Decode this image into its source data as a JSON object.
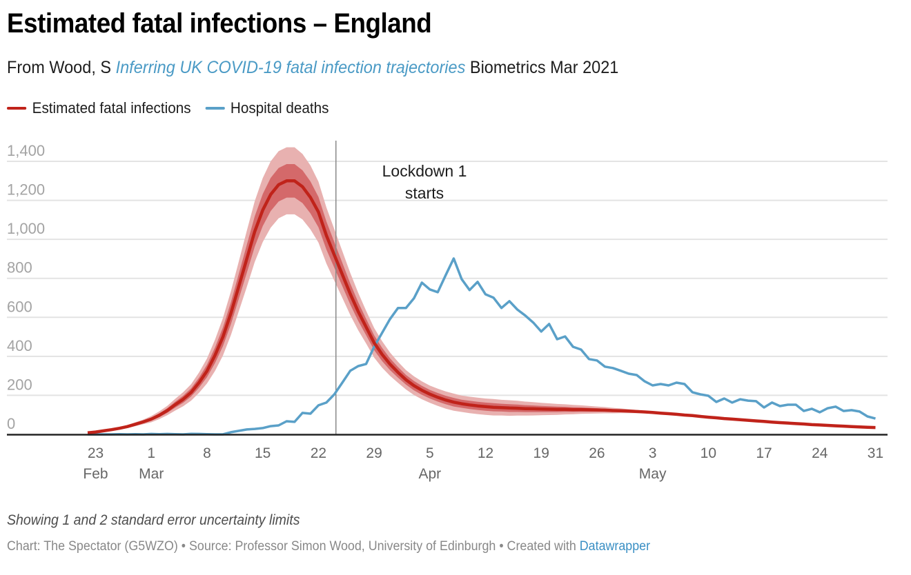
{
  "header": {
    "title": "Estimated fatal infections – England",
    "subtitle_prefix": "From Wood, S ",
    "subtitle_link": "Inferring UK COVID-19 fatal infection trajectories",
    "subtitle_suffix": " Biometrics Mar 2021"
  },
  "legend": [
    {
      "label": "Estimated fatal infections",
      "color": "#c0231a"
    },
    {
      "label": "Hospital deaths",
      "color": "#5aa0c8"
    }
  ],
  "note": "Showing 1 and 2 standard error uncertainty limits",
  "footer": {
    "text": "Chart: The Spectator (G5WZO) • Source: Professor Simon Wood, University of Edinburgh • Created with ",
    "link": "Datawrapper"
  },
  "colors": {
    "fatal_line": "#c0231a",
    "fatal_band_1se": "#d4696a",
    "fatal_band_2se": "#e8b1b0",
    "hospital_line": "#5aa0c8",
    "grid": "#e3e3e3",
    "axis": "#222222",
    "annotation_line": "#888888"
  },
  "chart_data": {
    "type": "line",
    "title": "Estimated fatal infections – England",
    "xlabel": "",
    "ylabel": "",
    "x_start_date": "2020-02-22",
    "x_unit": "day",
    "xlim_days": [
      0,
      100
    ],
    "ylim": [
      0,
      1400
    ],
    "grid": true,
    "legend_position": "top-left",
    "y_ticks": [
      {
        "value": 0,
        "label": "0"
      },
      {
        "value": 200,
        "label": "200"
      },
      {
        "value": 400,
        "label": "400"
      },
      {
        "value": 600,
        "label": "600"
      },
      {
        "value": 800,
        "label": "800"
      },
      {
        "value": 1000,
        "label": "1,000"
      },
      {
        "value": 1200,
        "label": "1,200"
      },
      {
        "value": 1400,
        "label": "1,400"
      }
    ],
    "x_ticks": [
      {
        "day": 1,
        "label": "23",
        "month": "Feb"
      },
      {
        "day": 8,
        "label": "1",
        "month": "Mar"
      },
      {
        "day": 15,
        "label": "8",
        "month": ""
      },
      {
        "day": 22,
        "label": "15",
        "month": ""
      },
      {
        "day": 29,
        "label": "22",
        "month": ""
      },
      {
        "day": 36,
        "label": "29",
        "month": ""
      },
      {
        "day": 43,
        "label": "5",
        "month": "Apr"
      },
      {
        "day": 50,
        "label": "12",
        "month": ""
      },
      {
        "day": 57,
        "label": "19",
        "month": ""
      },
      {
        "day": 64,
        "label": "26",
        "month": ""
      },
      {
        "day": 71,
        "label": "3",
        "month": "May"
      },
      {
        "day": 78,
        "label": "10",
        "month": ""
      },
      {
        "day": 85,
        "label": "17",
        "month": ""
      },
      {
        "day": 92,
        "label": "24",
        "month": ""
      },
      {
        "day": 99,
        "label": "31",
        "month": ""
      }
    ],
    "annotations": [
      {
        "day": 31,
        "label_line1": "Lockdown 1",
        "label_line2": "starts",
        "date": "2020-03-24"
      }
    ],
    "series": [
      {
        "name": "Estimated fatal infections",
        "values": [
          8,
          12,
          18,
          24,
          31,
          40,
          52,
          64,
          78,
          98,
          122,
          152,
          180,
          215,
          265,
          325,
          405,
          500,
          620,
          760,
          900,
          1040,
          1150,
          1230,
          1280,
          1300,
          1300,
          1270,
          1215,
          1140,
          1020,
          920,
          820,
          720,
          630,
          550,
          470,
          410,
          360,
          318,
          280,
          250,
          226,
          206,
          190,
          176,
          165,
          157,
          151,
          146,
          142,
          139,
          137,
          135,
          134,
          132,
          131,
          130,
          129,
          128,
          128,
          127,
          127,
          126,
          125,
          124,
          122,
          121,
          119,
          117,
          115,
          112,
          109,
          106,
          103,
          99,
          96,
          92,
          88,
          85,
          81,
          78,
          75,
          72,
          69,
          66,
          63,
          60,
          58,
          55,
          53,
          50,
          48,
          46,
          44,
          42,
          40,
          38,
          36,
          35
        ],
        "standard_error": [
          1,
          1,
          2,
          2,
          3,
          4,
          5,
          6,
          8,
          10,
          12,
          15,
          18,
          21,
          26,
          32,
          40,
          48,
          56,
          64,
          72,
          78,
          82,
          85,
          86,
          86,
          86,
          84,
          82,
          78,
          72,
          66,
          60,
          54,
          48,
          42,
          38,
          34,
          30,
          27,
          25,
          24,
          23,
          22,
          22,
          22,
          22,
          21,
          21,
          21,
          21,
          21,
          20,
          20,
          19,
          18,
          17,
          16,
          15,
          14,
          13,
          12,
          11,
          10,
          9,
          8,
          7,
          6,
          5,
          4,
          3,
          3,
          2,
          2,
          1,
          1,
          1,
          1,
          1,
          1,
          0,
          0,
          0,
          0,
          0,
          0,
          0,
          0,
          0,
          0,
          0,
          0,
          0,
          0,
          0,
          0,
          0,
          0,
          0,
          0
        ]
      },
      {
        "name": "Hospital deaths",
        "values": [
          0,
          0,
          0,
          0,
          1,
          0,
          1,
          0,
          2,
          1,
          2,
          1,
          0,
          3,
          2,
          1,
          0,
          0,
          11,
          18,
          25,
          28,
          32,
          42,
          46,
          67,
          64,
          110,
          106,
          149,
          163,
          205,
          265,
          326,
          350,
          361,
          449,
          520,
          591,
          648,
          648,
          697,
          778,
          743,
          729,
          817,
          902,
          796,
          740,
          782,
          718,
          701,
          648,
          683,
          640,
          609,
          573,
          527,
          566,
          488,
          502,
          449,
          435,
          386,
          379,
          347,
          340,
          326,
          311,
          304,
          272,
          251,
          258,
          251,
          265,
          258,
          216,
          205,
          198,
          166,
          184,
          163,
          180,
          173,
          170,
          138,
          163,
          145,
          152,
          152,
          120,
          131,
          113,
          134,
          142,
          120,
          124,
          117,
          92,
          81
        ]
      }
    ]
  }
}
